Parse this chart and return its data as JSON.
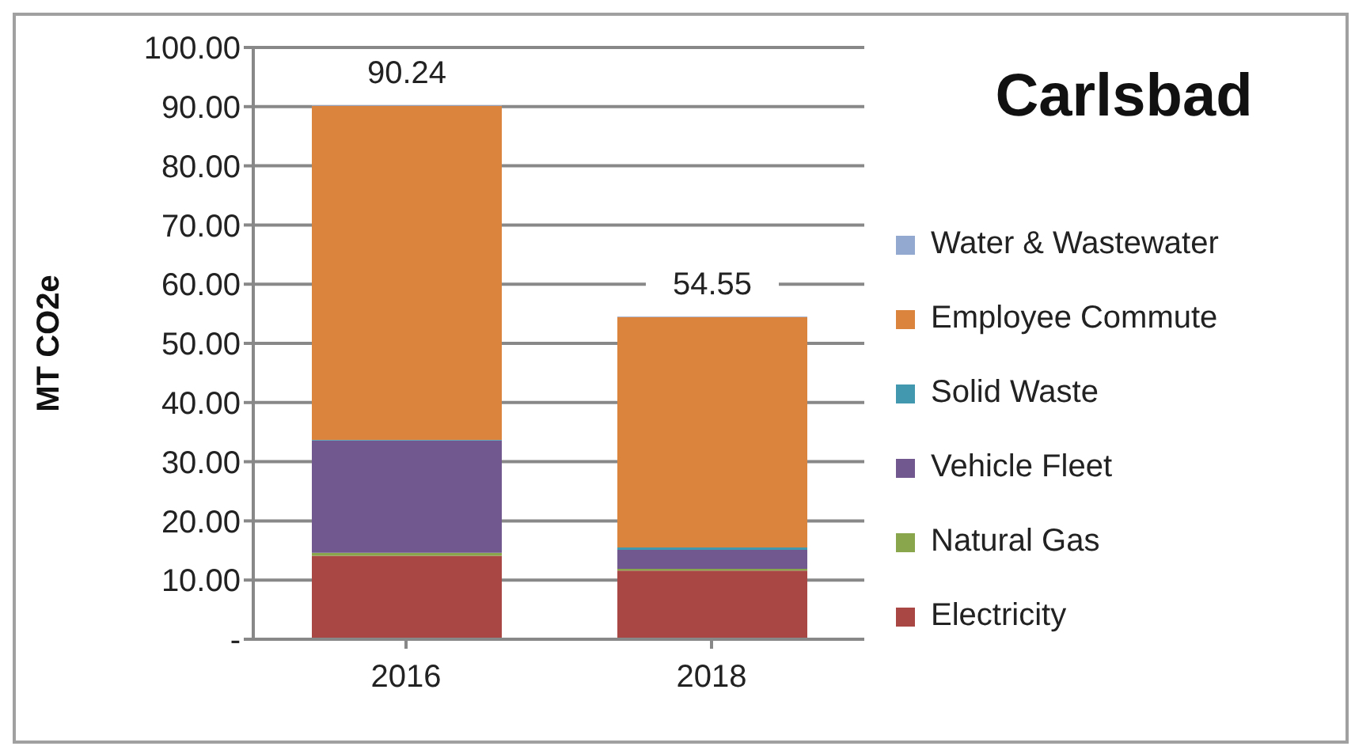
{
  "chart_data": {
    "type": "bar",
    "title": "Carlsbad",
    "ylabel": "MT CO2e",
    "categories": [
      "2016",
      "2018"
    ],
    "stacked": true,
    "series": [
      {
        "name": "Electricity",
        "color": "#a84744",
        "values": [
          14.1,
          11.6
        ]
      },
      {
        "name": "Natural Gas",
        "color": "#8aa64d",
        "values": [
          0.5,
          0.3
        ]
      },
      {
        "name": "Vehicle Fleet",
        "color": "#71588f",
        "values": [
          19.0,
          3.2
        ]
      },
      {
        "name": "Solid Waste",
        "color": "#4298af",
        "values": [
          0.1,
          0.4
        ]
      },
      {
        "name": "Employee Commute",
        "color": "#db843d",
        "values": [
          56.44,
          38.95
        ]
      },
      {
        "name": "Water & Wastewater",
        "color": "#93a9cf",
        "values": [
          0.1,
          0.1
        ]
      }
    ],
    "totals": [
      "90.24",
      "54.55"
    ],
    "ylim": [
      0,
      100
    ],
    "yticks": [
      {
        "value": 0,
        "label": "-"
      },
      {
        "value": 10,
        "label": "10.00"
      },
      {
        "value": 20,
        "label": "20.00"
      },
      {
        "value": 30,
        "label": "30.00"
      },
      {
        "value": 40,
        "label": "40.00"
      },
      {
        "value": 50,
        "label": "50.00"
      },
      {
        "value": 60,
        "label": "60.00"
      },
      {
        "value": 70,
        "label": "70.00"
      },
      {
        "value": 80,
        "label": "80.00"
      },
      {
        "value": 90,
        "label": "90.00"
      },
      {
        "value": 100,
        "label": "100.00"
      }
    ],
    "grid": "y",
    "legend": "right"
  }
}
